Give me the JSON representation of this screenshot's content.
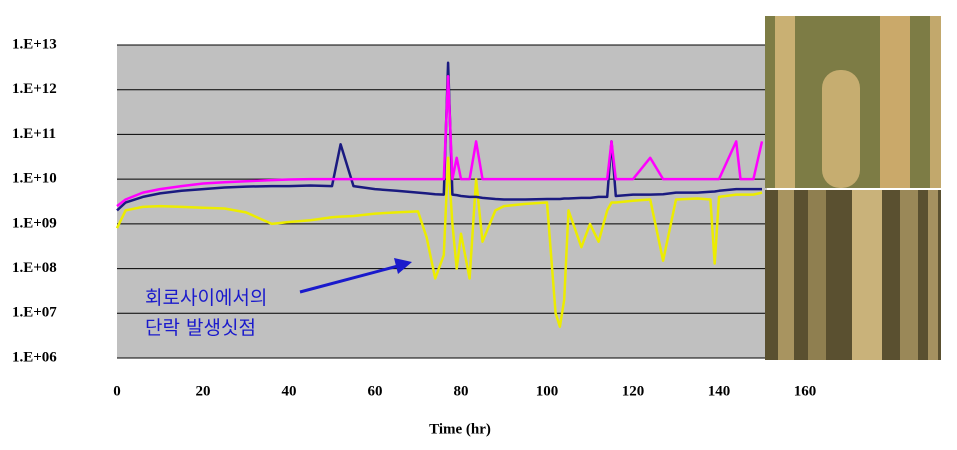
{
  "chart_data": {
    "type": "line",
    "xlabel": "Time (hr)",
    "annotation": [
      "회로사이에서의",
      "단락 발생싯점"
    ],
    "x": [
      0,
      2,
      6,
      10,
      15,
      20,
      25,
      30,
      36,
      40,
      45,
      50,
      52,
      55,
      60,
      65,
      70,
      72,
      74,
      76,
      77,
      78,
      79,
      80,
      82,
      83.5,
      85,
      88,
      90,
      95,
      100,
      102,
      103,
      104,
      105,
      108,
      110,
      112,
      114,
      115,
      116,
      120,
      124,
      127,
      130,
      135,
      138,
      139,
      140,
      144,
      145,
      148,
      150
    ],
    "series": [
      {
        "color": "#ecec00",
        "values": [
          800000000,
          2000000000,
          2400000000,
          2500000000,
          2400000000,
          2300000000,
          2200000000,
          1800000000,
          1000000000,
          1100000000,
          1200000000,
          1400000000,
          1450000000,
          1500000000,
          1700000000,
          1800000000,
          1900000000,
          500000000,
          60000000,
          200000000,
          30000000000,
          1000000000,
          100000000,
          600000000,
          60000000,
          10000000000,
          400000000,
          2000000000,
          2500000000,
          2800000000,
          3000000000,
          10000000,
          5000000,
          20000000,
          2000000000,
          300000000,
          1000000000,
          400000000,
          2000000000,
          3000000000,
          3000000000,
          3300000000,
          3500000000,
          150000000,
          3500000000,
          3700000000,
          3500000000,
          130000000,
          4000000000,
          4500000000,
          4500000000,
          4500000000,
          5000000000
        ]
      },
      {
        "color": "#1a1a80",
        "values": [
          2000000000,
          3000000000,
          4000000000,
          4800000000,
          5500000000,
          6000000000,
          6500000000,
          6800000000,
          7000000000,
          7000000000,
          7200000000,
          7000000000,
          60000000000,
          7000000000,
          6000000000,
          5500000000,
          5000000000,
          4800000000,
          4600000000,
          4500000000,
          4000000000000,
          4500000000,
          4400000000,
          4200000000,
          4000000000,
          4000000000,
          3800000000,
          3600000000,
          3500000000,
          3500000000,
          3600000000,
          3600000000,
          3600000000,
          3700000000,
          3700000000,
          3800000000,
          3800000000,
          4000000000,
          4000000000,
          70000000000,
          4200000000,
          4500000000,
          4500000000,
          4600000000,
          5000000000,
          5000000000,
          5200000000,
          5300000000,
          5500000000,
          6000000000,
          6000000000,
          6000000000,
          6000000000
        ]
      },
      {
        "color": "#ff00ff",
        "values": [
          2500000000,
          3500000000,
          5000000000,
          6000000000,
          7000000000,
          8000000000,
          8500000000,
          9000000000,
          9500000000,
          9800000000,
          10000000000,
          10000000000,
          10000000000,
          10000000000,
          10000000000,
          10000000000,
          10000000000,
          10000000000,
          10000000000,
          10000000000,
          2000000000000,
          10000000000,
          30000000000,
          10000000000,
          10000000000,
          70000000000,
          10000000000,
          10000000000,
          10000000000,
          10000000000,
          10000000000,
          10000000000,
          10000000000,
          10000000000,
          10000000000,
          10000000000,
          10000000000,
          10000000000,
          10000000000,
          70000000000,
          10000000000,
          10000000000,
          30000000000,
          10000000000,
          10000000000,
          10000000000,
          10000000000,
          10000000000,
          10000000000,
          70000000000,
          10000000000,
          10000000000,
          70000000000
        ]
      }
    ],
    "xlim": [
      0,
      160
    ],
    "xticks": [
      0,
      20,
      40,
      60,
      80,
      100,
      120,
      140,
      160
    ],
    "ylim": [
      1000000,
      10000000000000
    ],
    "log_y": true,
    "yticks": [
      {
        "value": 1000000,
        "label": "1.E+06"
      },
      {
        "value": 10000000,
        "label": "1.E+07"
      },
      {
        "value": 100000000,
        "label": "1.E+08"
      },
      {
        "value": 1000000000,
        "label": "1.E+09"
      },
      {
        "value": 10000000000,
        "label": "1.E+10"
      },
      {
        "value": 100000000000,
        "label": "1.E+11"
      },
      {
        "value": 1000000000000,
        "label": "1.E+12"
      },
      {
        "value": 10000000000000,
        "label": "1.E+13"
      }
    ],
    "grid": true,
    "plot_background": "#c0c0c0"
  }
}
